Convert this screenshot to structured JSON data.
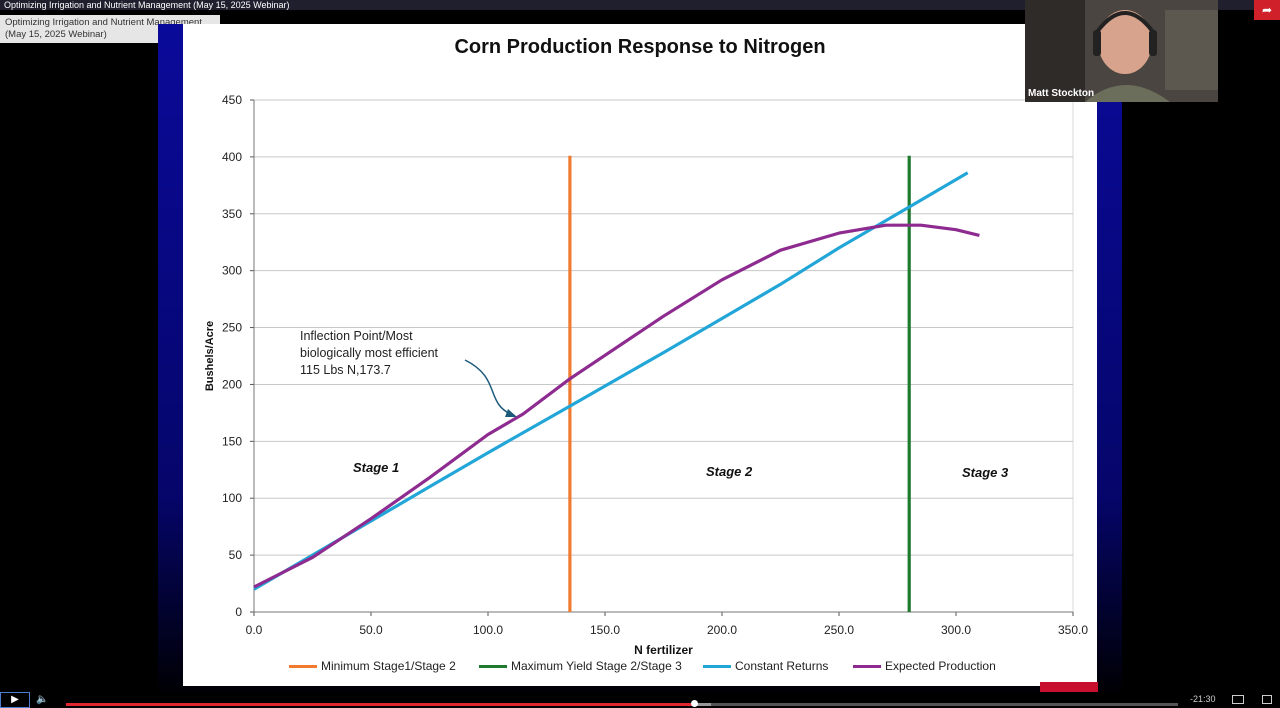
{
  "window": {
    "title": "Optimizing Irrigation and Nutrient Management (May 15, 2025 Webinar)",
    "tooltip_line1": "Optimizing Irrigation and Nutrient Management",
    "tooltip_line2": "(May 15, 2025 Webinar)"
  },
  "camera": {
    "name": "Matt Stockton"
  },
  "share": {
    "icon": "share-icon"
  },
  "player": {
    "time": "-21:30",
    "progress": 0.565,
    "buffered": 0.58,
    "icons": [
      "play-icon",
      "volume-icon",
      "pip-icon",
      "fullscreen-icon"
    ]
  },
  "chart_data": {
    "type": "line",
    "title": "Corn Production Response to Nitrogen",
    "xlabel": "N fertilizer",
    "ylabel": "Bushels/Acre",
    "xlim": [
      0,
      350
    ],
    "ylim": [
      0,
      450
    ],
    "x_ticks": [
      "0.0",
      "50.0",
      "100.0",
      "150.0",
      "200.0",
      "250.0",
      "300.0",
      "350.0"
    ],
    "y_ticks": [
      "0",
      "50",
      "100",
      "150",
      "200",
      "250",
      "300",
      "350",
      "400",
      "450"
    ],
    "grid": "horizontal",
    "legend_position": "bottom",
    "series": [
      {
        "name": "Minimum Stage1/Stage 2",
        "color": "#f07a30",
        "x": [
          135,
          135
        ],
        "y": [
          0,
          401
        ]
      },
      {
        "name": "Maximum Yield Stage 2/Stage 3",
        "color": "#1e7a2e",
        "x": [
          280,
          280
        ],
        "y": [
          0,
          401
        ]
      },
      {
        "name": "Constant Returns",
        "color": "#22a6d8",
        "x": [
          0,
          25,
          50,
          75,
          100,
          135,
          175,
          200,
          225,
          250,
          280,
          305
        ],
        "y": [
          20,
          50,
          80,
          110,
          140,
          181,
          228,
          258,
          288,
          320,
          356,
          386
        ]
      },
      {
        "name": "Expected Production",
        "color": "#8e2b90",
        "x": [
          0,
          25,
          50,
          75,
          100,
          115,
          135,
          175,
          200,
          225,
          250,
          270,
          285,
          300,
          310
        ],
        "y": [
          22,
          48,
          82,
          118,
          156,
          174,
          205,
          260,
          292,
          318,
          333,
          340,
          340,
          336,
          331
        ]
      }
    ],
    "annotations": {
      "inflection_line1": "Inflection Point/Most",
      "inflection_line2": "biologically most efficient",
      "inflection_line3": "115 Lbs N,173.7",
      "stage1": "Stage 1",
      "stage2": "Stage 2",
      "stage3": "Stage 3"
    }
  }
}
